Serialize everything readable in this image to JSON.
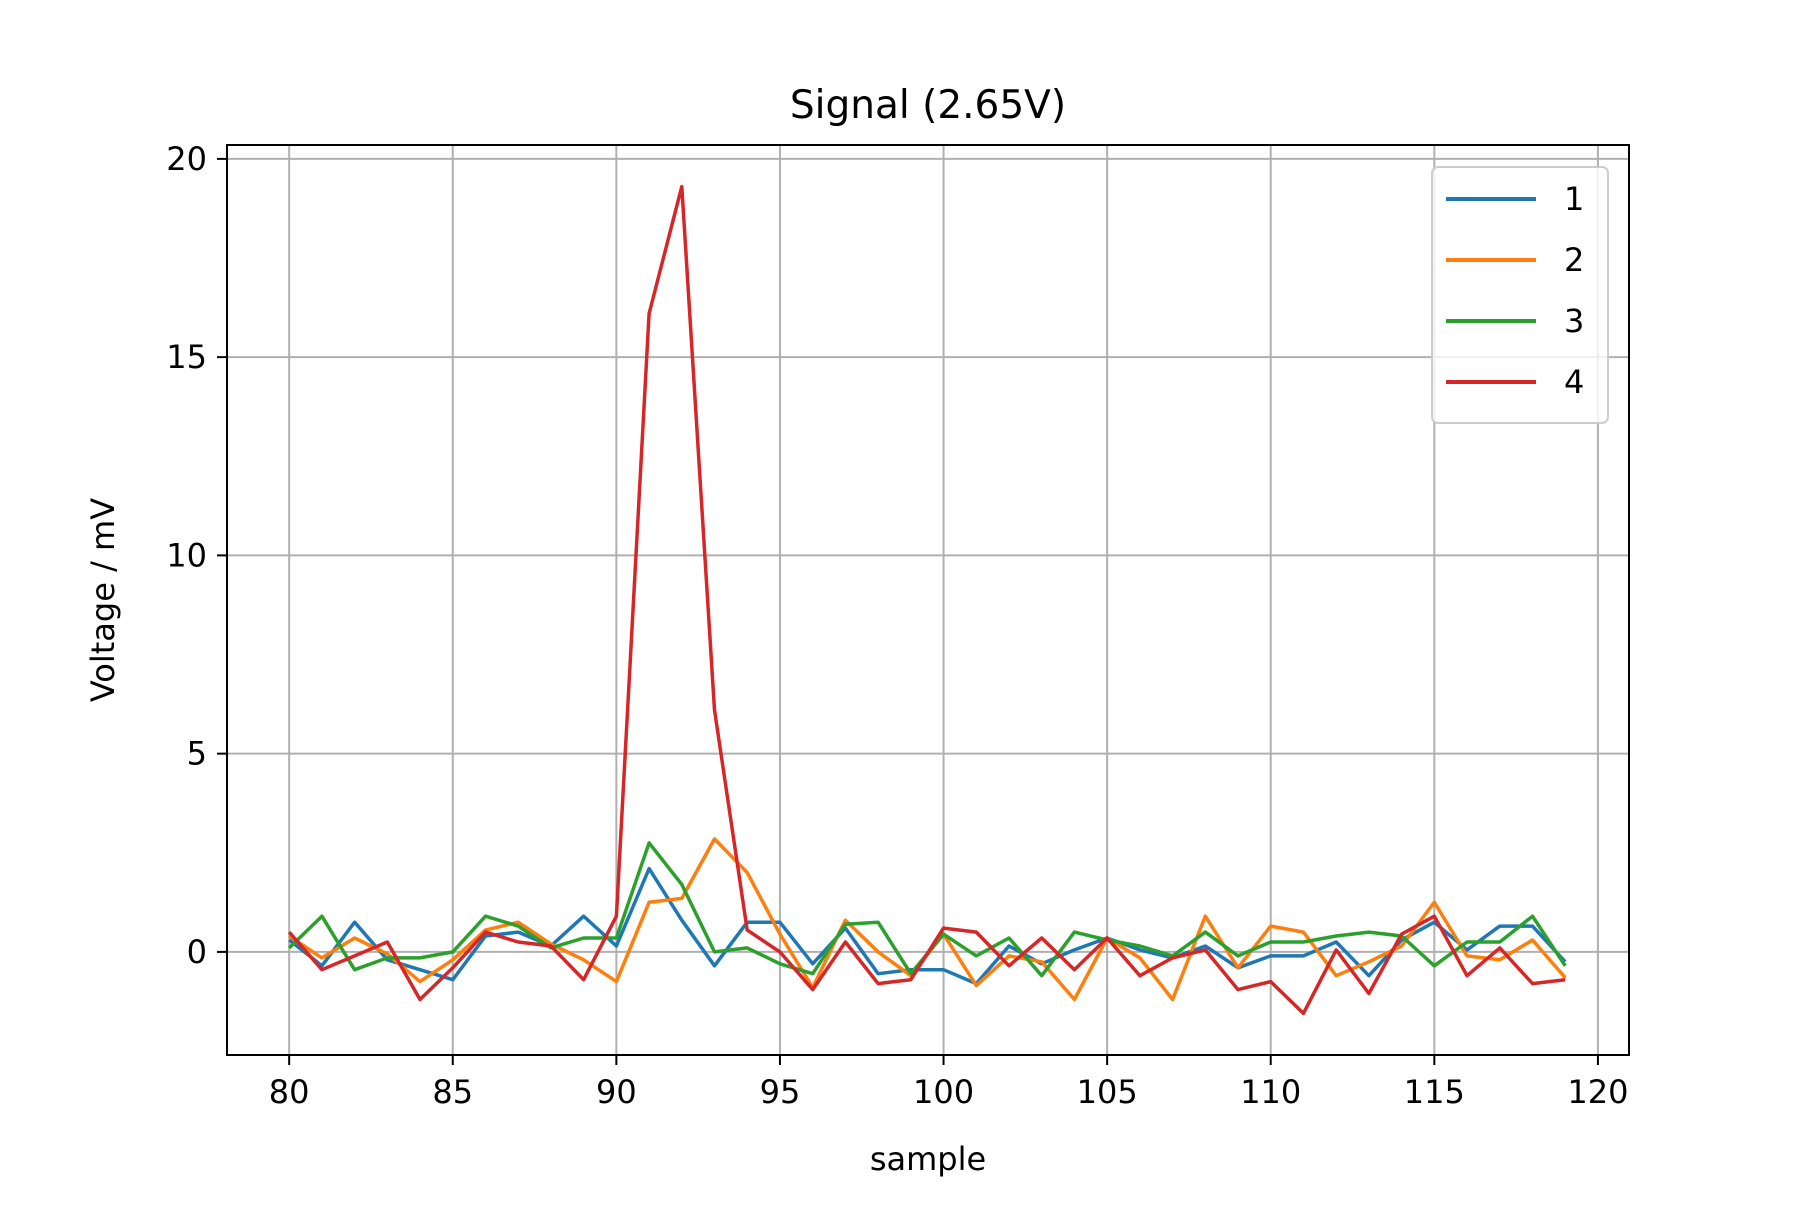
{
  "chart_data": {
    "type": "line",
    "title": "Signal (2.65V)",
    "xlabel": "sample",
    "ylabel": "Voltage / mV",
    "xlim": [
      78.1,
      120.95
    ],
    "ylim": [
      -2.6,
      20.35
    ],
    "xticks": [
      80,
      85,
      90,
      95,
      100,
      105,
      110,
      115,
      120
    ],
    "yticks": [
      0,
      5,
      10,
      15,
      20
    ],
    "grid": true,
    "legend_position": "top-right",
    "x": [
      80,
      81,
      82,
      83,
      84,
      85,
      86,
      87,
      88,
      89,
      90,
      91,
      92,
      93,
      94,
      95,
      96,
      97,
      98,
      99,
      100,
      101,
      102,
      103,
      104,
      105,
      106,
      107,
      108,
      109,
      110,
      111,
      112,
      113,
      114,
      115,
      116,
      117,
      118,
      119
    ],
    "series": [
      {
        "name": "1",
        "color": "#1f77b4",
        "values": [
          0.3,
          -0.35,
          0.75,
          -0.2,
          -0.45,
          -0.7,
          0.4,
          0.5,
          0.15,
          0.9,
          0.15,
          2.1,
          0.8,
          -0.35,
          0.75,
          0.75,
          -0.3,
          0.6,
          -0.55,
          -0.45,
          -0.45,
          -0.8,
          0.15,
          -0.3,
          0.05,
          0.35,
          0.05,
          -0.15,
          0.15,
          -0.4,
          -0.1,
          -0.1,
          0.25,
          -0.6,
          0.3,
          0.75,
          0.05,
          0.65,
          0.65,
          -0.25
        ]
      },
      {
        "name": "2",
        "color": "#ff7f0e",
        "values": [
          0.4,
          -0.15,
          0.35,
          -0.05,
          -0.75,
          -0.2,
          0.55,
          0.75,
          0.2,
          -0.2,
          -0.75,
          1.25,
          1.35,
          2.85,
          2.0,
          0.45,
          -0.9,
          0.8,
          0.0,
          -0.6,
          0.45,
          -0.85,
          -0.1,
          -0.25,
          -1.2,
          0.35,
          -0.15,
          -1.2,
          0.9,
          -0.4,
          0.65,
          0.5,
          -0.6,
          -0.25,
          0.15,
          1.25,
          -0.1,
          -0.2,
          0.3,
          -0.65
        ]
      },
      {
        "name": "3",
        "color": "#2ca02c",
        "values": [
          0.1,
          0.9,
          -0.45,
          -0.15,
          -0.15,
          0.0,
          0.9,
          0.65,
          0.1,
          0.35,
          0.35,
          2.75,
          1.7,
          0.0,
          0.1,
          -0.3,
          -0.55,
          0.7,
          0.75,
          -0.55,
          0.45,
          -0.1,
          0.35,
          -0.6,
          0.5,
          0.3,
          0.15,
          -0.1,
          0.5,
          -0.1,
          0.25,
          0.25,
          0.4,
          0.5,
          0.4,
          -0.35,
          0.25,
          0.25,
          0.9,
          -0.35
        ]
      },
      {
        "name": "4",
        "color": "#d62728",
        "values": [
          0.5,
          -0.45,
          -0.1,
          0.25,
          -1.2,
          -0.4,
          0.5,
          0.25,
          0.15,
          -0.7,
          0.9,
          16.1,
          19.3,
          6.1,
          0.55,
          0.0,
          -0.95,
          0.25,
          -0.8,
          -0.7,
          0.6,
          0.5,
          -0.35,
          0.35,
          -0.45,
          0.35,
          -0.6,
          -0.15,
          0.05,
          -0.95,
          -0.75,
          -1.55,
          0.05,
          -1.05,
          0.45,
          0.9,
          -0.6,
          0.1,
          -0.8,
          -0.7
        ]
      }
    ]
  }
}
